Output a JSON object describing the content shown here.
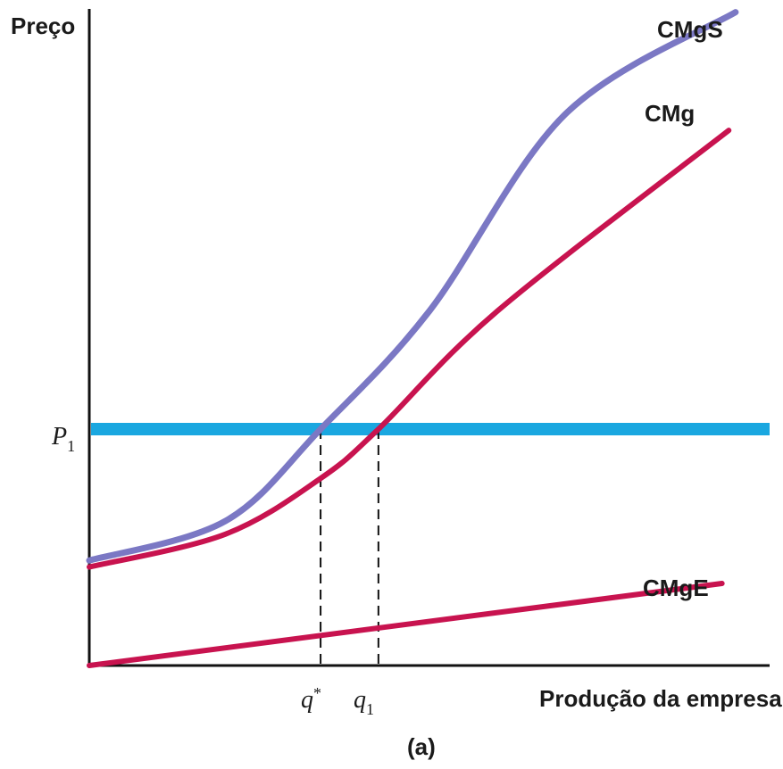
{
  "chart_data": {
    "type": "line",
    "ylabel": "Preço",
    "xlabel": "Produção da empresa",
    "caption": "(a)",
    "xlim": [
      0,
      10
    ],
    "ylim": [
      0,
      10
    ],
    "price_line": {
      "label": "P1",
      "value": 3.6
    },
    "x_markers": [
      {
        "label": "q*",
        "value": 3.4
      },
      {
        "label": "q1",
        "value": 4.25
      }
    ],
    "series": [
      {
        "name": "CMgS",
        "x": [
          0,
          2,
          3.4,
          5,
          7,
          9.5
        ],
        "y": [
          1.6,
          2.2,
          3.6,
          5.4,
          8.4,
          9.95
        ]
      },
      {
        "name": "CMg",
        "x": [
          0,
          2,
          3.4,
          4.25,
          6,
          9.4
        ],
        "y": [
          1.5,
          2.0,
          2.85,
          3.6,
          5.4,
          8.15
        ]
      },
      {
        "name": "CMgE",
        "x": [
          0,
          9.3
        ],
        "y": [
          0.0,
          1.25
        ]
      }
    ],
    "colors": {
      "CMgS": "#7b78c4",
      "CMg": "#c8134f",
      "CMgE": "#c8134f",
      "P1": "#1aa7e0",
      "axis": "#111111"
    }
  }
}
